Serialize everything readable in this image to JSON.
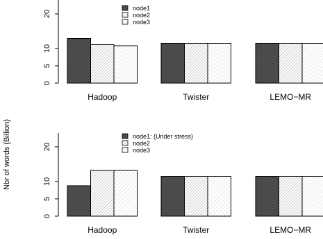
{
  "ylabel": "Nbr of words (Billion)",
  "chart_data": [
    {
      "type": "bar",
      "title": "",
      "xlabel": "",
      "ylabel": "",
      "categories": [
        "Hadoop",
        "Twister",
        "LEMO−MR"
      ],
      "yticks": [
        0,
        5,
        10,
        20
      ],
      "ylim": [
        0,
        24
      ],
      "legend_position": "top-center",
      "grid": false,
      "series": [
        {
          "name": "node1",
          "pattern": "dense-hatch",
          "values": [
            12.9,
            11.5,
            11.5
          ]
        },
        {
          "name": "node2",
          "pattern": "hatch",
          "values": [
            11.1,
            11.5,
            11.5
          ]
        },
        {
          "name": "node3",
          "pattern": "light-hatch",
          "values": [
            10.8,
            11.5,
            11.5
          ]
        }
      ]
    },
    {
      "type": "bar",
      "title": "",
      "xlabel": "",
      "ylabel": "",
      "categories": [
        "Hadoop",
        "Twister",
        "LEMO−MR"
      ],
      "yticks": [
        0,
        5,
        10,
        20
      ],
      "ylim": [
        0,
        24
      ],
      "legend_position": "top-center",
      "grid": false,
      "series": [
        {
          "name": "node1: (Under stress)",
          "pattern": "dense-hatch",
          "values": [
            8.8,
            11.5,
            11.5
          ]
        },
        {
          "name": "node2",
          "pattern": "hatch",
          "values": [
            13.2,
            11.5,
            11.5
          ]
        },
        {
          "name": "node3",
          "pattern": "light-hatch",
          "values": [
            13.2,
            11.5,
            11.5
          ]
        }
      ]
    }
  ]
}
